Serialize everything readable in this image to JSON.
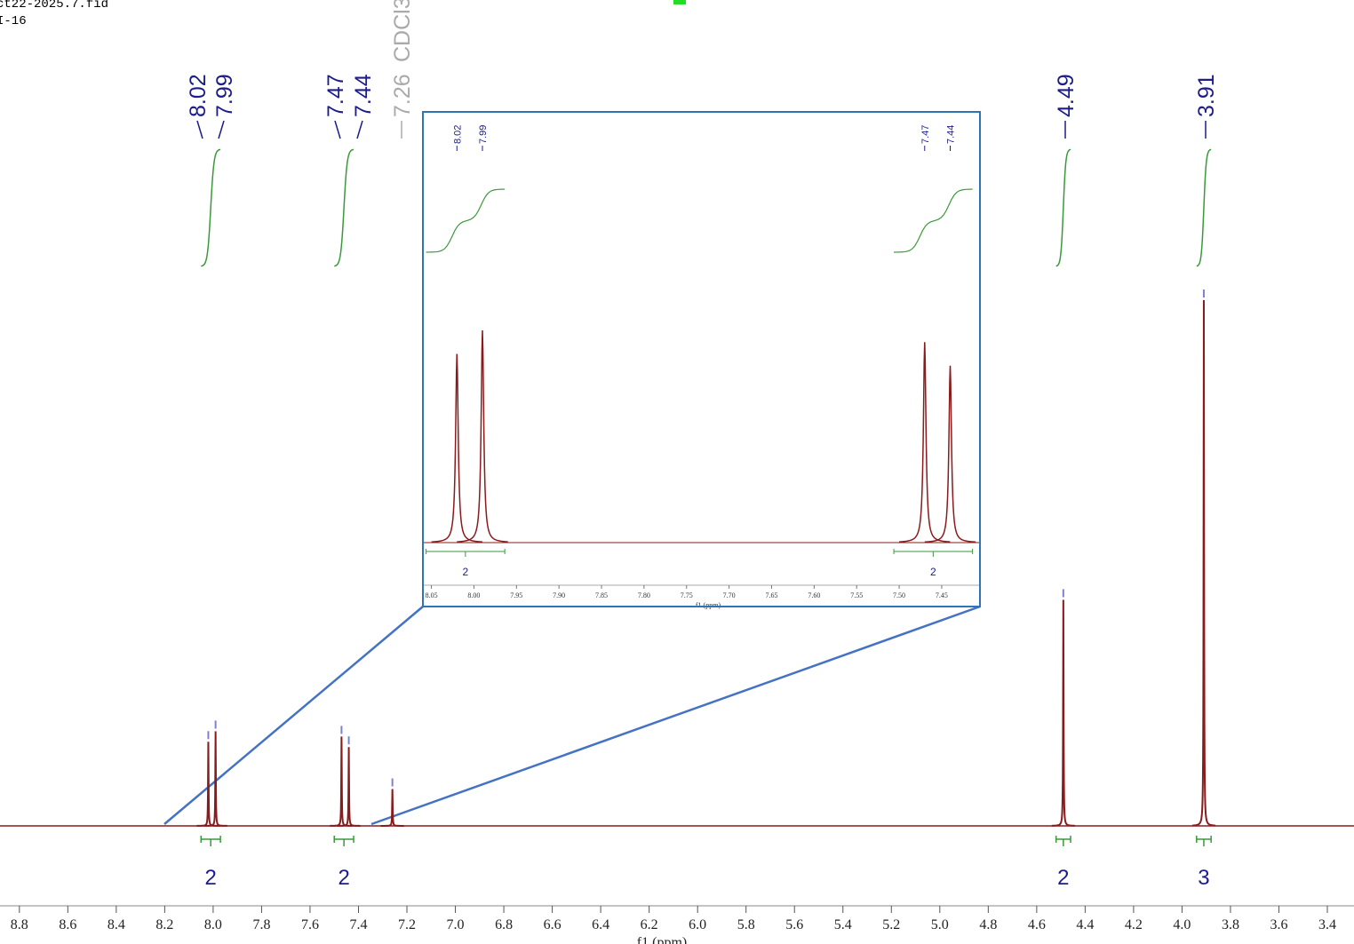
{
  "header": {
    "file": "ct22-2025.7.fid",
    "sample": "I-16"
  },
  "chart_data": {
    "type": "spectrum",
    "x_label": "f1 (ppm)",
    "xlim": [
      8.88,
      3.29
    ],
    "xticks": [
      8.8,
      8.6,
      8.4,
      8.2,
      {
        "value": 8,
        "label": "8.0"
      },
      7.8,
      7.6,
      7.4,
      7.2,
      {
        "value": 7,
        "label": "7.0"
      },
      6.8,
      6.6,
      6.4,
      6.2,
      {
        "value": 6,
        "label": "6.0"
      },
      5.8,
      5.6,
      5.4,
      5.2,
      {
        "value": 5,
        "label": "5.0"
      },
      4.8,
      4.6,
      4.4,
      4.2,
      {
        "value": 4,
        "label": "4.0"
      },
      3.8,
      3.6,
      3.4
    ],
    "peaks": [
      {
        "x": 8.02,
        "height": 16
      },
      {
        "x": 7.99,
        "height": 18
      },
      {
        "x": 7.47,
        "height": 17
      },
      {
        "x": 7.44,
        "height": 15
      },
      {
        "x": 7.26,
        "height": 7,
        "solvent": "CDCl3"
      },
      {
        "x": 4.49,
        "height": 43
      },
      {
        "x": 3.91,
        "height": 100
      }
    ],
    "integrals": [
      {
        "from": 8.05,
        "to": 7.97,
        "value": 2
      },
      {
        "from": 7.5,
        "to": 7.42,
        "value": 2
      },
      {
        "from": 4.52,
        "to": 4.46,
        "value": 2
      },
      {
        "from": 3.94,
        "to": 3.88,
        "value": 3
      }
    ],
    "inset": {
      "x_label": "f1 (ppm)",
      "xlim": [
        8.06,
        7.405
      ],
      "xticks": [
        8.05,
        {
          "value": 8,
          "label": "8.00"
        },
        7.95,
        {
          "value": 7.9,
          "label": "7.90"
        },
        7.85,
        {
          "value": 7.8,
          "label": "7.80"
        },
        7.75,
        {
          "value": 7.7,
          "label": "7.70"
        },
        7.65,
        {
          "value": 7.6,
          "label": "7.60"
        },
        7.55,
        {
          "value": 7.5,
          "label": "7.50"
        },
        7.45
      ]
    }
  }
}
